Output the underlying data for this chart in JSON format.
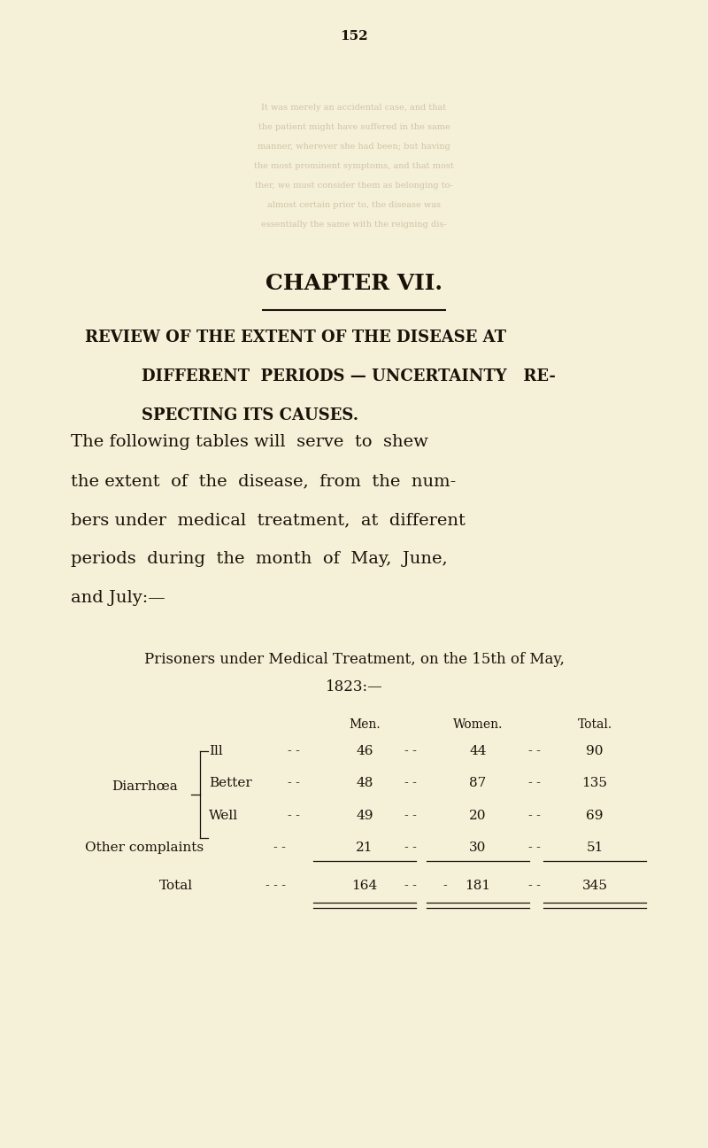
{
  "background_color": "#f5f0d8",
  "page_number": "152",
  "chapter_title": "CHAPTER VII.",
  "section_title_line1": "REVIEW OF THE EXTENT OF THE DISEASE AT",
  "section_title_line2": "DIFFERENT  PERIODS — UNCERTAINTY   RE-",
  "section_title_line3": "SPECTING ITS CAUSES.",
  "para_line1": "The following tables will  serve  to  shew",
  "para_line2": "the extent  of  the  disease,  from  the  num-",
  "para_line3": "bers under  medical  treatment,  at  different",
  "para_line4": "periods  during  the  month  of  May,  June,",
  "para_line5": "and July:—",
  "table_header": "Prisoners under Medical Treatment, on the 15th of May,",
  "table_subheader": "1823:—",
  "col_headers": [
    "Men.",
    "Women.",
    "Total."
  ],
  "diarrhoea_label": "Diarrhœa",
  "row_sub_labels": [
    "Ill",
    "Better",
    "Well"
  ],
  "row_other": "Other complaints",
  "row_total": "Total",
  "data_ill": [
    46,
    44,
    90
  ],
  "data_better": [
    48,
    87,
    135
  ],
  "data_well": [
    49,
    20,
    69
  ],
  "data_other": [
    21,
    30,
    51
  ],
  "data_total": [
    164,
    181,
    345
  ],
  "text_color": "#1a1208",
  "faded_text_color": "#c8b89a",
  "font_size_page_num": 11,
  "font_size_chapter": 18,
  "font_size_section": 13,
  "font_size_paragraph": 14,
  "font_size_table_header": 12,
  "font_size_table_data": 11
}
